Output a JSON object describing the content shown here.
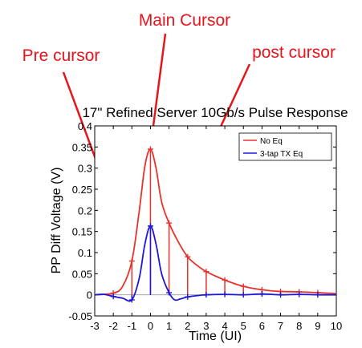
{
  "annotations": {
    "main": "Main Cursor",
    "pre": "Pre cursor",
    "post": "post cursor"
  },
  "colors": {
    "annotation": "#e8141c",
    "no_eq": "#e8332c",
    "tx_eq": "#1f17d8",
    "axis": "#000000"
  },
  "chart_data": {
    "type": "line",
    "title": "17\" Refined Server 10Gb/s Pulse Response",
    "xlabel": "Time (UI)",
    "ylabel": "PP Diff Voltage (V)",
    "xlim": [
      -3,
      10
    ],
    "ylim": [
      -0.05,
      0.4
    ],
    "xticks": [
      "-3",
      "-2",
      "-1",
      "0",
      "1",
      "2",
      "3",
      "4",
      "5",
      "6",
      "7",
      "8",
      "9",
      "10"
    ],
    "yticks": [
      "-0.05",
      "0",
      "0.05",
      "0.1",
      "0.15",
      "0.2",
      "0.25",
      "0.3",
      "0.35",
      "0.4"
    ],
    "legend_position": "top-right",
    "series": [
      {
        "name": "No Eq",
        "color": "#e8332c",
        "x": [
          -3,
          -2,
          -1.5,
          -1,
          -0.6,
          -0.3,
          0,
          0.3,
          0.6,
          1,
          1.5,
          2,
          2.5,
          3,
          4,
          5,
          6,
          7,
          8,
          9,
          10
        ],
        "y": [
          0.0,
          0.004,
          0.02,
          0.08,
          0.2,
          0.305,
          0.345,
          0.3,
          0.22,
          0.17,
          0.125,
          0.09,
          0.07,
          0.055,
          0.035,
          0.02,
          0.012,
          0.008,
          0.007,
          0.005,
          0.003
        ],
        "markers": [
          [
            -2,
            0.004
          ],
          [
            -1,
            0.08
          ],
          [
            0,
            0.345
          ],
          [
            1,
            0.17
          ],
          [
            2,
            0.09
          ],
          [
            3,
            0.055
          ],
          [
            4,
            0.035
          ],
          [
            5,
            0.02
          ],
          [
            6,
            0.012
          ],
          [
            7,
            0.008
          ],
          [
            8,
            0.007
          ],
          [
            9,
            0.005
          ]
        ]
      },
      {
        "name": "3-tap TX Eq",
        "color": "#1f17d8",
        "x": [
          -3,
          -2.5,
          -2,
          -1.5,
          -1,
          -0.6,
          -0.3,
          0,
          0.3,
          0.6,
          1,
          1.3,
          1.6,
          2,
          2.5,
          3,
          4,
          5,
          6,
          7,
          8,
          9,
          10
        ],
        "y": [
          0.0,
          0.001,
          -0.004,
          -0.008,
          -0.012,
          0.04,
          0.12,
          0.163,
          0.12,
          0.05,
          0.005,
          -0.012,
          -0.01,
          -0.005,
          -0.002,
          0.0,
          0.001,
          0.0,
          0.002,
          0.0,
          0.001,
          0.0,
          0.0
        ],
        "markers": [
          [
            -2,
            -0.004
          ],
          [
            -1,
            -0.012
          ],
          [
            0,
            0.163
          ],
          [
            1,
            0.005
          ],
          [
            2,
            -0.005
          ],
          [
            3,
            0.0
          ],
          [
            4,
            0.001
          ],
          [
            5,
            0.0
          ],
          [
            6,
            0.002
          ],
          [
            7,
            0.0
          ],
          [
            8,
            0.001
          ],
          [
            9,
            0.0
          ]
        ]
      }
    ]
  }
}
